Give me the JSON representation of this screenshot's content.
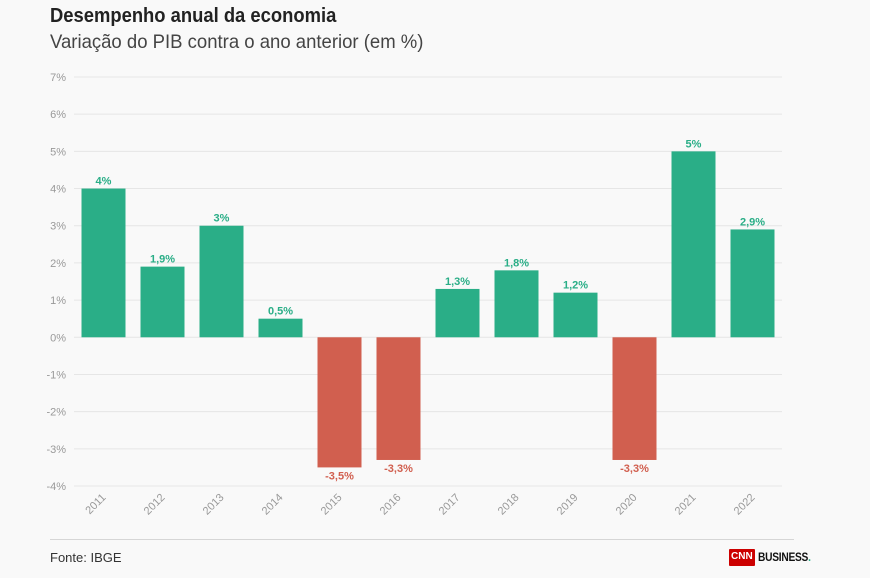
{
  "header": {
    "title": "Desempenho anual da economia",
    "subtitle": "Variação do PIB contra o ano anterior (em %)"
  },
  "footer": {
    "source": "Fonte: IBGE",
    "logo_mark": "CNN",
    "logo_text": "BUSINESS"
  },
  "colors": {
    "positive": "#2aae87",
    "negative": "#d15f4f",
    "grid": "#e6e6e6",
    "axis_text": "#999999"
  },
  "chart_data": {
    "type": "bar",
    "title": "Desempenho anual da economia",
    "subtitle": "Variação do PIB contra o ano anterior (em %)",
    "categories": [
      "2011",
      "2012",
      "2013",
      "2014",
      "2015",
      "2016",
      "2017",
      "2018",
      "2019",
      "2020",
      "2021",
      "2022"
    ],
    "values": [
      4,
      1.9,
      3,
      0.5,
      -3.5,
      -3.3,
      1.3,
      1.8,
      1.2,
      -3.3,
      5,
      2.9
    ],
    "data_labels": [
      "4%",
      "1,9%",
      "3%",
      "0,5%",
      "-3,5%",
      "-3,3%",
      "1,3%",
      "1,8%",
      "1,2%",
      "-3,3%",
      "5%",
      "2,9%"
    ],
    "ylim": [
      -4,
      7
    ],
    "yticks": [
      -4,
      -3,
      -2,
      -1,
      0,
      1,
      2,
      3,
      4,
      5,
      6,
      7
    ],
    "ytick_labels": [
      "-4%",
      "-3%",
      "-2%",
      "-1%",
      "0%",
      "1%",
      "2%",
      "3%",
      "4%",
      "5%",
      "6%",
      "7%"
    ],
    "xlabel": "",
    "ylabel": "",
    "grid": true,
    "legend": "none"
  }
}
